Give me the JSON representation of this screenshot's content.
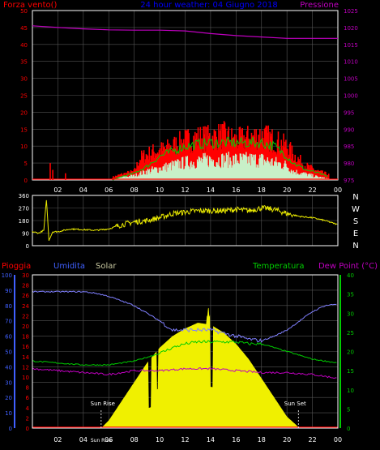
{
  "chart_data": [
    {
      "type": "line",
      "title": "24 hour weather: 04 Giugno 2018",
      "left_axis_label": "Forza vento()",
      "right_axis_label": "Pressione",
      "left_ticks": [
        0,
        5,
        10,
        15,
        20,
        25,
        30,
        35,
        40,
        45,
        50
      ],
      "right_ticks": [
        975,
        980,
        985,
        990,
        995,
        1000,
        1005,
        1010,
        1015,
        1020,
        1025
      ],
      "ylim_left": [
        0,
        50
      ],
      "ylim_right": [
        975,
        1025
      ],
      "x_ticks": [
        "02",
        "04",
        "06",
        "08",
        "10",
        "12",
        "14",
        "16",
        "18",
        "20",
        "22",
        "00"
      ],
      "xlim_hours": [
        0,
        24
      ],
      "grid": true,
      "colors": {
        "gust": "#ff0000",
        "average": "#00cc00",
        "wind": "#c8f0c8",
        "pressure": "#c000c0",
        "title": "#0000ff"
      },
      "pressure": {
        "x": [
          0,
          2,
          4,
          6,
          8,
          10,
          12,
          14,
          16,
          18,
          20,
          22,
          24
        ],
        "y": [
          1020.5,
          1020,
          1019.6,
          1019.3,
          1019.2,
          1019.2,
          1019,
          1018.2,
          1017.6,
          1017.2,
          1016.8,
          1016.8,
          1016.8
        ]
      },
      "gust_envelope": {
        "x": [
          0,
          1.5,
          4,
          5.8,
          6.3,
          7,
          8,
          8.5,
          9.5,
          10.5,
          12,
          13,
          14,
          15,
          16,
          17,
          18,
          19,
          20,
          20.5,
          21.5,
          22.5,
          23.2,
          24
        ],
        "y": [
          0,
          0,
          0,
          0,
          1,
          2,
          3,
          8,
          10,
          11,
          14,
          15,
          15,
          16,
          14,
          15,
          16,
          14,
          12,
          9,
          5,
          3,
          2,
          0
        ]
      },
      "average_envelope": {
        "x": [
          0,
          6.3,
          7,
          8,
          9,
          10,
          12,
          14,
          16,
          18,
          19,
          20,
          20.5,
          21.5,
          22.5,
          23.2,
          24
        ],
        "y": [
          0,
          0,
          1,
          2,
          4,
          7,
          10,
          11,
          11,
          11,
          10,
          7,
          5,
          3,
          2,
          1,
          0
        ]
      },
      "wind_envelope": {
        "x": [
          0,
          6.3,
          7,
          8,
          9,
          10,
          12,
          14,
          16,
          18,
          19,
          20,
          20.5,
          21.5,
          22.5,
          23.2,
          24
        ],
        "y": [
          0,
          0,
          1,
          1.5,
          3,
          4,
          6,
          7,
          7,
          7,
          6,
          5,
          3,
          2,
          1,
          0.5,
          0
        ]
      },
      "spikes_early": {
        "x": [
          1.4,
          1.6,
          2.6
        ],
        "y": [
          5,
          3,
          2
        ]
      }
    },
    {
      "type": "line",
      "title": "",
      "left_ticks": [
        0,
        90,
        180,
        270,
        360
      ],
      "ylim": [
        0,
        360
      ],
      "compass_labels": [
        "N",
        "W",
        "S",
        "E",
        "N"
      ],
      "colors": {
        "direction": "#e8e800"
      },
      "direction": {
        "x": [
          0,
          0.5,
          0.9,
          1.1,
          1.3,
          1.6,
          2,
          3,
          4,
          5,
          6,
          7,
          8,
          9,
          10,
          11,
          12,
          13,
          14,
          15,
          16,
          17,
          18,
          19,
          20,
          21,
          22,
          23,
          24
        ],
        "y": [
          100,
          90,
          110,
          330,
          40,
          100,
          100,
          120,
          115,
          110,
          120,
          150,
          170,
          180,
          200,
          230,
          240,
          250,
          250,
          250,
          260,
          250,
          270,
          260,
          230,
          210,
          200,
          180,
          150
        ]
      }
    },
    {
      "type": "area",
      "title": "",
      "labels": {
        "pioggia": "Pioggia",
        "umidita": "Umidita",
        "solar": "Solar",
        "temperatura": "Temperatura",
        "dewpoint": "Dew Point (°C)"
      },
      "humidity_ticks": [
        0,
        10,
        20,
        30,
        40,
        50,
        60,
        70,
        80,
        90,
        100
      ],
      "rain_ticks": [
        0,
        2,
        4,
        6,
        8,
        10,
        12,
        14,
        16,
        18,
        20,
        22,
        24,
        26,
        28,
        30
      ],
      "temp_ticks": [
        0,
        5,
        10,
        15,
        20,
        25,
        30,
        35,
        40
      ],
      "ylim_humidity": [
        0,
        100
      ],
      "ylim_temp": [
        0,
        40
      ],
      "x_ticks": [
        "02",
        "04",
        "06",
        "08",
        "10",
        "12",
        "14",
        "16",
        "18",
        "20",
        "22",
        "00"
      ],
      "x_ticks_extra": "Sun Rise",
      "annotations": {
        "sunrise": "Sun Rise",
        "sunset": "Sun Set"
      },
      "sunrise_hour": 5.4,
      "sunset_hour": 20.9,
      "colors": {
        "humidity": "#8080ff",
        "temperature": "#00cc00",
        "dewpoint": "#c000c0",
        "solar": "#f0f000",
        "rain": "#ff0000",
        "humidity_axis": "#4060ff",
        "temp_axis": "#00cc00",
        "rain_axis": "#ff0000"
      },
      "humidity": {
        "x": [
          0,
          2,
          4,
          5,
          6,
          7,
          8,
          9,
          10,
          11,
          12,
          13,
          14,
          15,
          16,
          17,
          18,
          19,
          20,
          21,
          22,
          23,
          24
        ],
        "y": [
          89,
          89,
          89,
          88,
          86,
          83,
          80,
          75,
          70,
          64,
          64,
          64,
          64,
          62,
          60,
          58,
          57,
          60,
          64,
          70,
          76,
          80,
          81
        ]
      },
      "temperature": {
        "x": [
          0,
          2,
          4,
          6,
          8,
          9,
          10,
          11,
          12,
          13,
          14,
          15,
          16,
          17,
          18,
          19,
          20,
          21,
          22,
          23,
          24
        ],
        "y": [
          17.5,
          17,
          16.5,
          16.5,
          17.5,
          18.5,
          19.5,
          21,
          22,
          22.5,
          22.5,
          22.5,
          22.5,
          22,
          22,
          21,
          20,
          19,
          18,
          17.5,
          17
        ]
      },
      "dewpoint": {
        "x": [
          0,
          2,
          4,
          6,
          8,
          10,
          12,
          14,
          16,
          18,
          20,
          22,
          24
        ],
        "y": [
          15.5,
          15,
          14.5,
          14,
          15,
          15,
          15.5,
          15.5,
          15,
          14.5,
          14.5,
          14,
          13
        ]
      },
      "solar_envelope": {
        "x": [
          0,
          5.4,
          6,
          7,
          8,
          9,
          10,
          11,
          12,
          13,
          14,
          15,
          16,
          17,
          18,
          19,
          20,
          21,
          24
        ],
        "y": [
          0,
          0,
          2,
          7,
          12,
          17,
          21,
          24,
          26,
          27.5,
          27,
          25,
          22,
          18,
          13,
          8,
          3,
          0,
          0
        ]
      }
    }
  ]
}
